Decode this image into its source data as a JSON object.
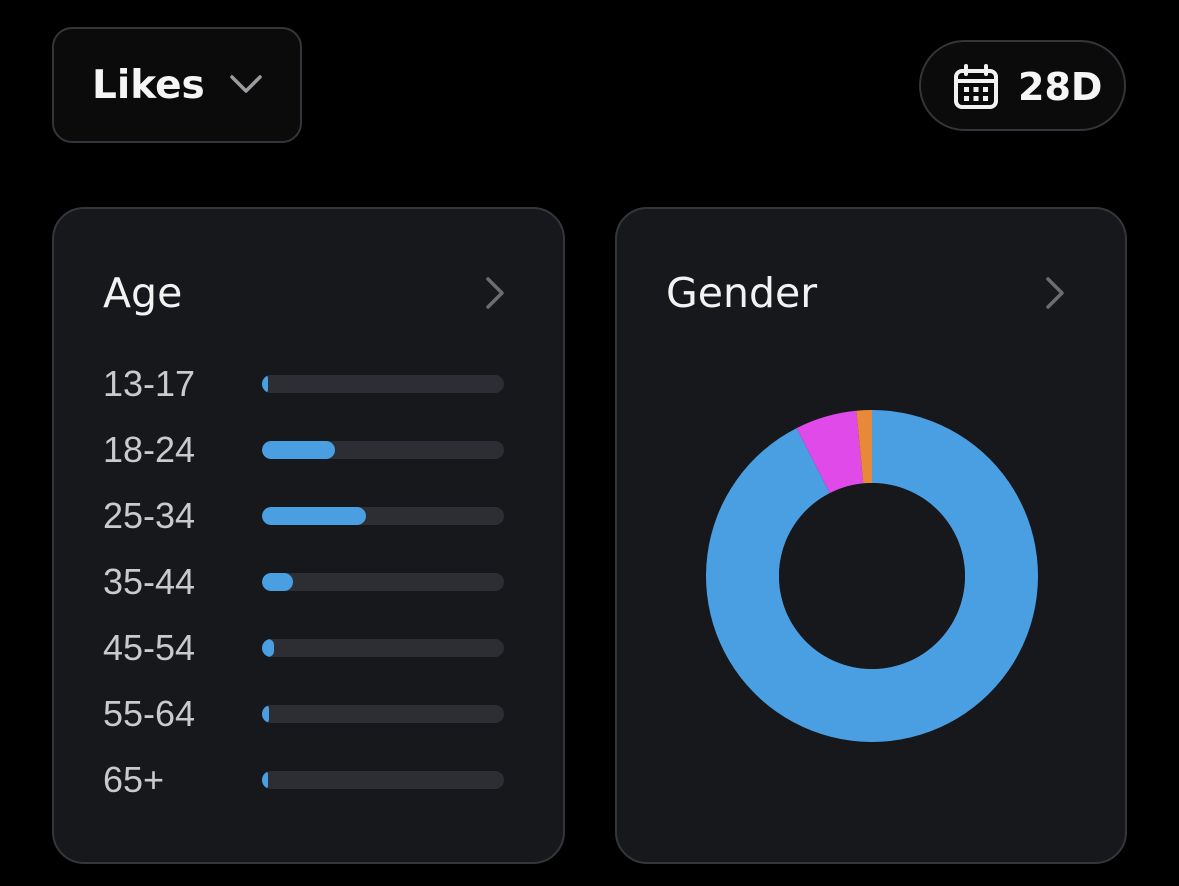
{
  "metric_select": {
    "label": "Likes",
    "icon": "chevron-down-icon"
  },
  "range_button": {
    "label": "28D",
    "icon": "calendar-icon"
  },
  "age_card": {
    "title": "Age",
    "icon": "chevron-right-icon",
    "bar_color": "#4a9fe3",
    "track_color": "#2c2e33",
    "rows": [
      {
        "label": "13-17",
        "fill_percent": 2
      },
      {
        "label": "18-24",
        "fill_percent": 30
      },
      {
        "label": "25-34",
        "fill_percent": 43
      },
      {
        "label": "35-44",
        "fill_percent": 13
      },
      {
        "label": "45-54",
        "fill_percent": 5
      },
      {
        "label": "55-64",
        "fill_percent": 3
      },
      {
        "label": "65+",
        "fill_percent": 2
      }
    ]
  },
  "gender_card": {
    "title": "Gender",
    "icon": "chevron-right-icon",
    "segments": [
      {
        "percent": 92.5,
        "color": "#4a9fe3"
      },
      {
        "percent": 6.0,
        "color": "#e04ae8"
      },
      {
        "percent": 1.5,
        "color": "#e8893a"
      }
    ]
  }
}
